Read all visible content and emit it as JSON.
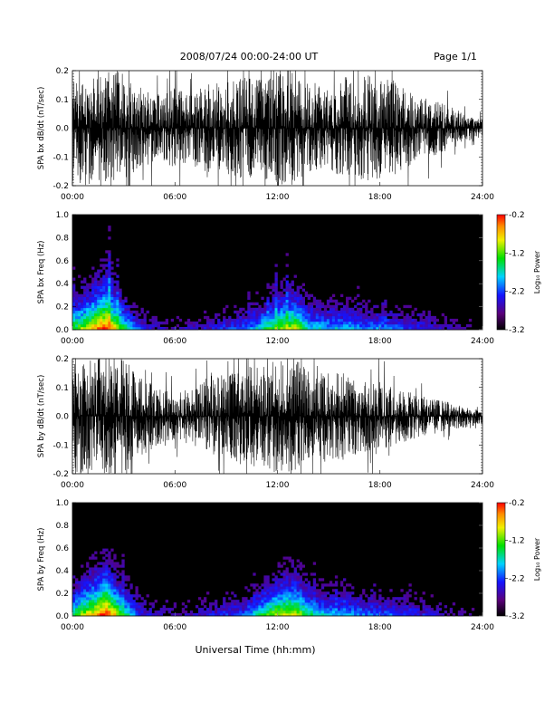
{
  "header": {
    "title": "2008/07/24  00:00-24:00 UT",
    "page": "Page 1/1"
  },
  "xaxis_label": "Universal Time (hh:mm)",
  "colorbar_label": "Log₁₀ Power",
  "chart_data": [
    {
      "type": "line",
      "ylabel": "SPA bx dB/dt (nT/sec)",
      "xlim": [
        0,
        24
      ],
      "ylim": [
        -0.2,
        0.2
      ],
      "x_ticks": [
        "00:00",
        "06:00",
        "12:00",
        "18:00",
        "24:00"
      ],
      "y_ticks": [
        "0.2",
        "0.1",
        "0.0",
        "-0.1",
        "-0.2"
      ],
      "series": [
        {
          "x": [
            0,
            1,
            2,
            3,
            4,
            5,
            6,
            7,
            8,
            9,
            10,
            11,
            12,
            13,
            14,
            15,
            16,
            17,
            18,
            19,
            20,
            21,
            22,
            23,
            24
          ],
          "y_upper": [
            0.2,
            0.2,
            0.2,
            0.2,
            0.14,
            0.12,
            0.14,
            0.12,
            0.16,
            0.16,
            0.18,
            0.17,
            0.2,
            0.2,
            0.15,
            0.14,
            0.18,
            0.18,
            0.2,
            0.16,
            0.12,
            0.1,
            0.08,
            0.05,
            0.03
          ],
          "y_lower": [
            -0.2,
            -0.2,
            -0.2,
            -0.2,
            -0.14,
            -0.12,
            -0.14,
            -0.12,
            -0.16,
            -0.16,
            -0.18,
            -0.17,
            -0.2,
            -0.2,
            -0.15,
            -0.14,
            -0.18,
            -0.18,
            -0.2,
            -0.16,
            -0.12,
            -0.1,
            -0.08,
            -0.05,
            -0.03
          ]
        }
      ]
    },
    {
      "type": "heatmap",
      "ylabel": "SPA bx Freq (Hz)",
      "xlim": [
        0,
        24
      ],
      "ylim": [
        0,
        1.0
      ],
      "x_ticks": [
        "00:00",
        "06:00",
        "12:00",
        "18:00",
        "24:00"
      ],
      "y_ticks": [
        "1.0",
        "0.8",
        "0.6",
        "0.4",
        "0.2",
        "0.0"
      ],
      "colorbar": {
        "range": [
          -3.2,
          -0.2
        ],
        "ticks": [
          "-0.2",
          "-1.2",
          "-2.2",
          "-3.2"
        ]
      },
      "activity_hours": [
        0,
        1,
        2,
        3,
        4,
        5,
        6,
        7,
        8,
        9,
        10,
        11,
        12,
        13,
        14,
        15,
        16,
        17,
        18,
        19,
        20,
        21,
        22,
        23,
        24
      ],
      "activity_level": [
        0.6,
        0.8,
        1.0,
        0.6,
        0.3,
        0.2,
        0.2,
        0.2,
        0.25,
        0.3,
        0.35,
        0.5,
        0.7,
        0.75,
        0.5,
        0.45,
        0.45,
        0.4,
        0.4,
        0.35,
        0.3,
        0.25,
        0.2,
        0.15,
        0.1
      ]
    },
    {
      "type": "line",
      "ylabel": "SPA by dB/dt (nT/sec)",
      "xlim": [
        0,
        24
      ],
      "ylim": [
        -0.2,
        0.2
      ],
      "x_ticks": [
        "00:00",
        "06:00",
        "12:00",
        "18:00",
        "24:00"
      ],
      "y_ticks": [
        "0.2",
        "0.1",
        "0.0",
        "-0.1",
        "-0.2"
      ],
      "series": [
        {
          "x": [
            0,
            1,
            2,
            3,
            4,
            5,
            6,
            7,
            8,
            9,
            10,
            11,
            12,
            13,
            14,
            15,
            16,
            17,
            18,
            19,
            20,
            21,
            22,
            23,
            24
          ],
          "y_upper": [
            0.2,
            0.2,
            0.2,
            0.2,
            0.14,
            0.1,
            0.08,
            0.1,
            0.14,
            0.15,
            0.17,
            0.18,
            0.2,
            0.2,
            0.16,
            0.16,
            0.15,
            0.12,
            0.12,
            0.1,
            0.08,
            0.06,
            0.05,
            0.03,
            0.02
          ],
          "y_lower": [
            -0.2,
            -0.2,
            -0.2,
            -0.2,
            -0.14,
            -0.1,
            -0.08,
            -0.1,
            -0.14,
            -0.15,
            -0.17,
            -0.18,
            -0.2,
            -0.2,
            -0.16,
            -0.16,
            -0.15,
            -0.12,
            -0.12,
            -0.1,
            -0.08,
            -0.06,
            -0.05,
            -0.04,
            -0.03
          ]
        }
      ]
    },
    {
      "type": "heatmap",
      "ylabel": "SPA by Freq (Hz)",
      "xlim": [
        0,
        24
      ],
      "ylim": [
        0,
        1.0
      ],
      "x_ticks": [
        "00:00",
        "06:00",
        "12:00",
        "18:00",
        "24:00"
      ],
      "y_ticks": [
        "1.0",
        "0.8",
        "0.6",
        "0.4",
        "0.2",
        "0.0"
      ],
      "colorbar": {
        "range": [
          -3.2,
          -0.2
        ],
        "ticks": [
          "-0.2",
          "-1.2",
          "-2.2",
          "-3.2"
        ]
      },
      "activity_hours": [
        0,
        1,
        2,
        3,
        4,
        5,
        6,
        7,
        8,
        9,
        10,
        11,
        12,
        13,
        14,
        15,
        16,
        17,
        18,
        19,
        20,
        21,
        22,
        23,
        24
      ],
      "activity_level": [
        0.6,
        0.8,
        1.0,
        0.6,
        0.3,
        0.2,
        0.2,
        0.2,
        0.25,
        0.3,
        0.35,
        0.55,
        0.75,
        0.8,
        0.55,
        0.45,
        0.45,
        0.4,
        0.35,
        0.35,
        0.3,
        0.25,
        0.2,
        0.15,
        0.1
      ]
    }
  ]
}
